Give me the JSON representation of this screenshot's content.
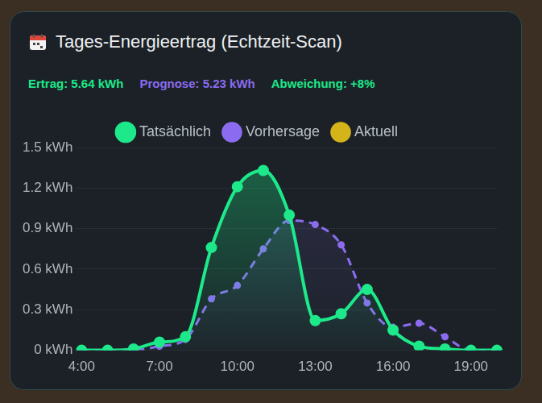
{
  "chart_data": {
    "type": "line",
    "title": "Tages-Energieertrag (Echtzeit-Scan)",
    "annotations": [
      "Ertrag: 5.64 kWh",
      "Prognose: 5.23 kWh",
      "Abweichung: +8%"
    ],
    "categories": [
      "4:00",
      null,
      null,
      "7:00",
      null,
      null,
      "10:00",
      null,
      null,
      "13:00",
      null,
      null,
      "16:00",
      null,
      null,
      "19:00",
      null
    ],
    "series": [
      {
        "name": "Tatsächlich",
        "color": "#1de98b",
        "marker": "circle",
        "line_style": "solid",
        "values": [
          0,
          0,
          0.01,
          0.06,
          0.1,
          0.76,
          1.21,
          1.33,
          1.0,
          0.22,
          0.27,
          0.45,
          0.15,
          0.03,
          0.01,
          0,
          0
        ]
      },
      {
        "name": "Vorhersage",
        "color": "#8b6cf0",
        "marker": "circle",
        "line_style": "dashed",
        "values": [
          0,
          0,
          0,
          0.03,
          0.08,
          0.38,
          0.48,
          0.75,
          0.96,
          0.93,
          0.78,
          0.35,
          0.17,
          0.2,
          0.1,
          0,
          0
        ]
      },
      {
        "name": "Aktuell",
        "color": "#d4b41a",
        "marker": "circle",
        "line_style": "solid",
        "values": [
          null,
          null,
          null,
          null,
          null,
          null,
          null,
          null,
          null,
          null,
          null,
          null,
          null,
          null,
          null,
          null,
          null
        ]
      }
    ],
    "ylim": [
      0,
      1.5
    ],
    "yticks": [
      {
        "value": 0,
        "label": "0 kWh"
      },
      {
        "value": 0.3,
        "label": "0.3 kWh"
      },
      {
        "value": 0.6,
        "label": "0.6 kWh"
      },
      {
        "value": 0.9,
        "label": "0.9 kWh"
      },
      {
        "value": 1.2,
        "label": "1.2 kWh"
      },
      {
        "value": 1.5,
        "label": "1.5 kWh"
      }
    ],
    "grid": true,
    "legend": "top"
  }
}
